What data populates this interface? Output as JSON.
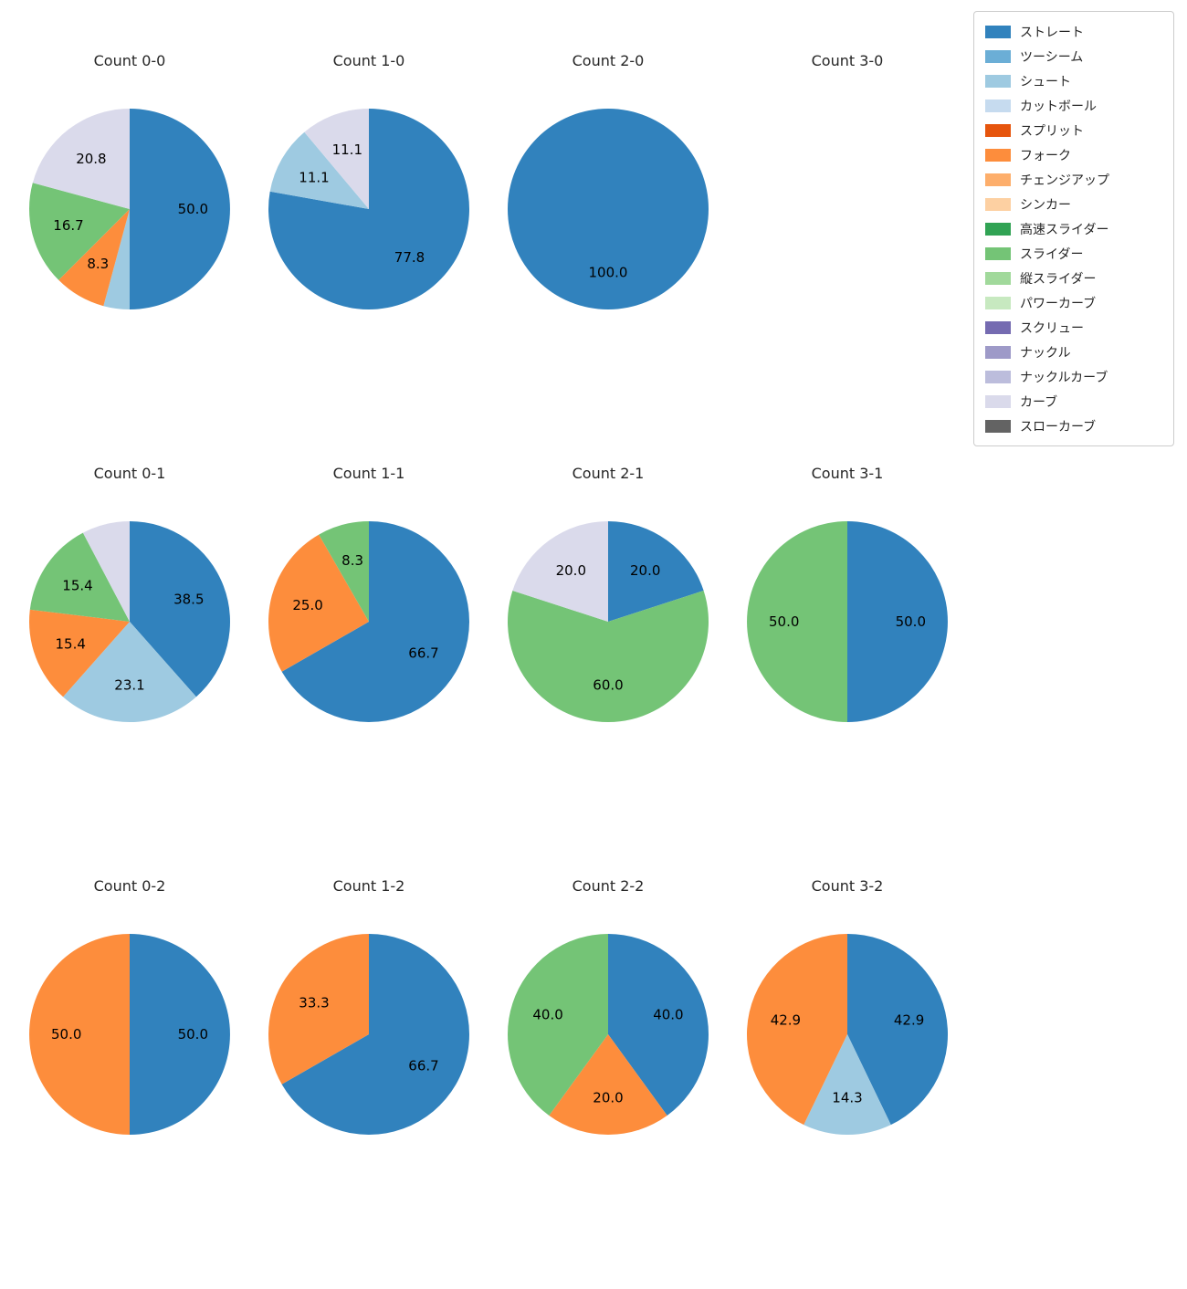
{
  "palette": {
    "ストレート": "#3182bd",
    "ツーシーム": "#6baed6",
    "シュート": "#9ecae1",
    "カットボール": "#c6dbef",
    "スプリット": "#e6550d",
    "フォーク": "#fd8d3c",
    "チェンジアップ": "#fdae6b",
    "シンカー": "#fdd0a2",
    "高速スライダー": "#31a354",
    "スライダー": "#74c476",
    "縦スライダー": "#a1d99b",
    "パワーカーブ": "#c7e9c0",
    "スクリュー": "#756bb1",
    "ナックル": "#9e9ac8",
    "ナックルカーブ": "#bcbddc",
    "カーブ": "#dadaeb",
    "スローカーブ": "#636363"
  },
  "legend": {
    "items": [
      {
        "label": "ストレート",
        "color": "#3182bd"
      },
      {
        "label": "ツーシーム",
        "color": "#6baed6"
      },
      {
        "label": "シュート",
        "color": "#9ecae1"
      },
      {
        "label": "カットボール",
        "color": "#c6dbef"
      },
      {
        "label": "スプリット",
        "color": "#e6550d"
      },
      {
        "label": "フォーク",
        "color": "#fd8d3c"
      },
      {
        "label": "チェンジアップ",
        "color": "#fdae6b"
      },
      {
        "label": "シンカー",
        "color": "#fdd0a2"
      },
      {
        "label": "高速スライダー",
        "color": "#31a354"
      },
      {
        "label": "スライダー",
        "color": "#74c476"
      },
      {
        "label": "縦スライダー",
        "color": "#a1d99b"
      },
      {
        "label": "パワーカーブ",
        "color": "#c7e9c0"
      },
      {
        "label": "スクリュー",
        "color": "#756bb1"
      },
      {
        "label": "ナックル",
        "color": "#9e9ac8"
      },
      {
        "label": "ナックルカーブ",
        "color": "#bcbddc"
      },
      {
        "label": "カーブ",
        "color": "#dadaeb"
      },
      {
        "label": "スローカーブ",
        "color": "#636363"
      }
    ]
  },
  "chart_data": {
    "type": "pie",
    "value_format": "percent",
    "start_angle": "top",
    "direction": "clockwise",
    "legend_position": "upper right",
    "charts": [
      {
        "title": "Count 0-0",
        "slices": [
          {
            "label": "ストレート",
            "value": 50.0,
            "pct": "50.0"
          },
          {
            "label": "シュート",
            "value": 4.2,
            "pct": ""
          },
          {
            "label": "フォーク",
            "value": 8.3,
            "pct": "8.3"
          },
          {
            "label": "スライダー",
            "value": 16.7,
            "pct": "16.7"
          },
          {
            "label": "カーブ",
            "value": 20.8,
            "pct": "20.8"
          }
        ]
      },
      {
        "title": "Count 1-0",
        "slices": [
          {
            "label": "ストレート",
            "value": 77.8,
            "pct": "77.8"
          },
          {
            "label": "シュート",
            "value": 11.1,
            "pct": "11.1"
          },
          {
            "label": "カーブ",
            "value": 11.1,
            "pct": "11.1"
          }
        ]
      },
      {
        "title": "Count 2-0",
        "slices": [
          {
            "label": "ストレート",
            "value": 100.0,
            "pct": "100.0"
          }
        ]
      },
      {
        "title": "Count 3-0",
        "slices": []
      },
      {
        "title": "Count 0-1",
        "slices": [
          {
            "label": "ストレート",
            "value": 38.5,
            "pct": "38.5"
          },
          {
            "label": "シュート",
            "value": 23.1,
            "pct": "23.1"
          },
          {
            "label": "フォーク",
            "value": 15.4,
            "pct": "15.4"
          },
          {
            "label": "スライダー",
            "value": 15.4,
            "pct": "15.4"
          },
          {
            "label": "カーブ",
            "value": 7.7,
            "pct": ""
          }
        ]
      },
      {
        "title": "Count 1-1",
        "slices": [
          {
            "label": "ストレート",
            "value": 66.7,
            "pct": "66.7"
          },
          {
            "label": "フォーク",
            "value": 25.0,
            "pct": "25.0"
          },
          {
            "label": "スライダー",
            "value": 8.3,
            "pct": "8.3"
          }
        ]
      },
      {
        "title": "Count 2-1",
        "slices": [
          {
            "label": "ストレート",
            "value": 20.0,
            "pct": "20.0"
          },
          {
            "label": "スライダー",
            "value": 60.0,
            "pct": "60.0"
          },
          {
            "label": "カーブ",
            "value": 20.0,
            "pct": "20.0"
          }
        ]
      },
      {
        "title": "Count 3-1",
        "slices": [
          {
            "label": "ストレート",
            "value": 50.0,
            "pct": "50.0"
          },
          {
            "label": "スライダー",
            "value": 50.0,
            "pct": "50.0"
          }
        ]
      },
      {
        "title": "Count 0-2",
        "slices": [
          {
            "label": "ストレート",
            "value": 50.0,
            "pct": "50.0"
          },
          {
            "label": "フォーク",
            "value": 50.0,
            "pct": "50.0"
          }
        ]
      },
      {
        "title": "Count 1-2",
        "slices": [
          {
            "label": "ストレート",
            "value": 66.7,
            "pct": "66.7"
          },
          {
            "label": "フォーク",
            "value": 33.3,
            "pct": "33.3"
          }
        ]
      },
      {
        "title": "Count 2-2",
        "slices": [
          {
            "label": "ストレート",
            "value": 40.0,
            "pct": "40.0"
          },
          {
            "label": "フォーク",
            "value": 20.0,
            "pct": "20.0"
          },
          {
            "label": "スライダー",
            "value": 40.0,
            "pct": "40.0"
          }
        ]
      },
      {
        "title": "Count 3-2",
        "slices": [
          {
            "label": "ストレート",
            "value": 42.9,
            "pct": "42.9"
          },
          {
            "label": "シュート",
            "value": 14.3,
            "pct": "14.3"
          },
          {
            "label": "フォーク",
            "value": 42.9,
            "pct": "42.9"
          }
        ]
      }
    ]
  }
}
